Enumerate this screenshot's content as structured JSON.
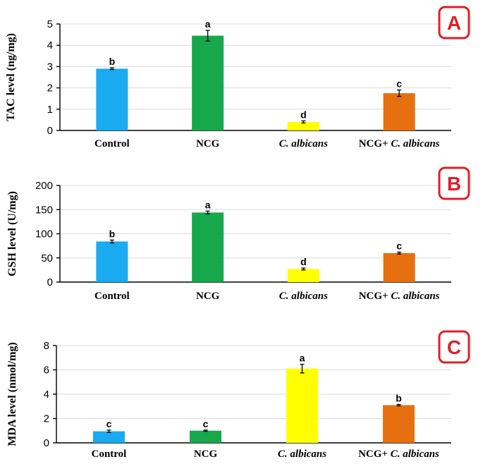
{
  "categories": [
    "Control",
    "NCG",
    "C. albicans",
    "NCG+ C. albicans"
  ],
  "colors": {
    "Control": "#1aaaf0",
    "NCG": "#16a84b",
    "C. albicans": "#ffff00",
    "NCG+ C. albicans": "#e6700f",
    "panel_label": "#e01f26"
  },
  "chart_data": [
    {
      "type": "bar",
      "panel": "A",
      "ylabel": "TAC level  (ng/mg)",
      "ylim": [
        0,
        5
      ],
      "yticks": [
        0,
        1,
        2,
        3,
        4,
        5
      ],
      "categories": [
        "Control",
        "NCG",
        "C. albicans",
        "NCG+ C. albicans"
      ],
      "values": [
        2.9,
        4.45,
        0.4,
        1.75
      ],
      "errors": [
        0.04,
        0.25,
        0.05,
        0.15
      ],
      "letters": [
        "b",
        "a",
        "d",
        "c"
      ]
    },
    {
      "type": "bar",
      "panel": "B",
      "ylabel": "GSH  level  (U/mg)",
      "ylim": [
        0,
        200
      ],
      "yticks": [
        0,
        50,
        100,
        150,
        200
      ],
      "categories": [
        "Control",
        "NCG",
        "C. albicans",
        "NCG+ C. albicans"
      ],
      "values": [
        84,
        144,
        27,
        60
      ],
      "errors": [
        3,
        3,
        2,
        2
      ],
      "letters": [
        "b",
        "a",
        "d",
        "c"
      ]
    },
    {
      "type": "bar",
      "panel": "C",
      "ylabel": "MDA  level  (nmol/mg)",
      "ylim": [
        0,
        8
      ],
      "yticks": [
        0,
        2,
        4,
        6,
        8
      ],
      "categories": [
        "Control",
        "NCG",
        "C. albicans",
        "NCG+ C. albicans"
      ],
      "values": [
        0.95,
        1.0,
        6.1,
        3.1
      ],
      "errors": [
        0.1,
        0.05,
        0.35,
        0.06
      ],
      "letters": [
        "c",
        "c",
        "a",
        "b"
      ]
    }
  ]
}
